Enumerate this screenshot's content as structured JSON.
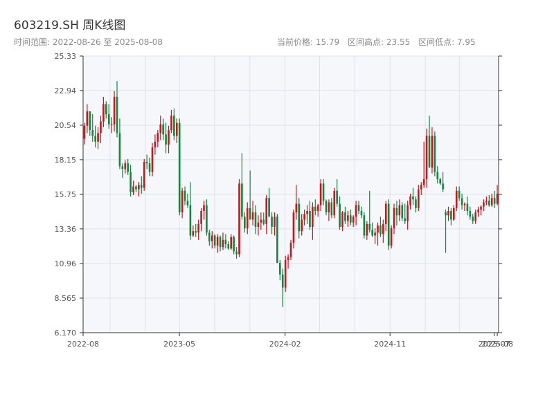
{
  "title": "603219.SH 周K线图",
  "range_text": "时间范围: 2022-08-26 至 2025-08-08",
  "stats": {
    "current": "当前价格: 15.79",
    "high": "区间高点: 23.55",
    "low": "区间低点: 7.95"
  },
  "colors": {
    "up": "#c8161d",
    "down": "#11873d",
    "plot_bg": "#f5f7fa",
    "grid": "#dde3ea",
    "axis": "#333333"
  },
  "chart_data": {
    "type": "candlestick",
    "title": "603219.SH 周K线图",
    "xlabel": "",
    "ylabel": "",
    "ylim": [
      6.17,
      25.33
    ],
    "yticks": [
      "6.170",
      "8.565",
      "10.96",
      "13.36",
      "15.75",
      "18.15",
      "20.54",
      "22.94",
      "25.33"
    ],
    "xlim": [
      "2022-08-26",
      "2025-08-08"
    ],
    "xticks": [
      {
        "date": "2022-08-01",
        "label": "2022-08"
      },
      {
        "date": "2023-05-01",
        "label": "2023-05"
      },
      {
        "date": "2024-02-01",
        "label": "2024-02"
      },
      {
        "date": "2024-11-01",
        "label": "2024-11"
      },
      {
        "date": "2025-07-31",
        "label": "2025-07"
      },
      {
        "date": "2025-08-08",
        "label": "2025-08"
      }
    ],
    "grid": true,
    "series": [
      {
        "columns": [
          "open",
          "high",
          "low",
          "close"
        ],
        "points": [
          [
            19.6,
            20.7,
            19.2,
            20.5
          ],
          [
            20.5,
            22.0,
            20.0,
            21.5
          ],
          [
            21.5,
            21.5,
            19.8,
            20.2
          ],
          [
            20.2,
            21.3,
            19.4,
            19.8
          ],
          [
            19.8,
            20.5,
            19.0,
            19.4
          ],
          [
            19.4,
            20.4,
            18.9,
            20.0
          ],
          [
            20.0,
            21.2,
            19.3,
            20.8
          ],
          [
            20.8,
            22.5,
            20.4,
            22.0
          ],
          [
            22.0,
            22.2,
            21.0,
            21.3
          ],
          [
            21.3,
            22.0,
            20.3,
            20.6
          ],
          [
            20.6,
            21.1,
            20.0,
            20.6
          ],
          [
            20.6,
            22.9,
            20.1,
            22.5
          ],
          [
            22.5,
            23.6,
            19.7,
            20.0
          ],
          [
            20.0,
            21.0,
            17.5,
            17.7
          ],
          [
            17.7,
            17.9,
            16.9,
            17.5
          ],
          [
            17.5,
            18.1,
            17.2,
            17.9
          ],
          [
            17.9,
            18.2,
            17.1,
            17.3
          ],
          [
            17.3,
            17.8,
            15.6,
            15.9
          ],
          [
            15.9,
            16.7,
            15.7,
            16.3
          ],
          [
            16.3,
            16.4,
            15.9,
            16.1
          ],
          [
            16.1,
            16.6,
            15.6,
            16.4
          ],
          [
            16.4,
            17.0,
            15.8,
            16.2
          ],
          [
            16.2,
            18.2,
            16.0,
            18.0
          ],
          [
            18.0,
            18.5,
            17.5,
            17.9
          ],
          [
            17.9,
            18.3,
            17.0,
            17.3
          ],
          [
            17.3,
            19.3,
            17.0,
            19.0
          ],
          [
            19.0,
            19.9,
            18.5,
            19.4
          ],
          [
            19.4,
            20.2,
            19.0,
            20.0
          ],
          [
            20.0,
            21.2,
            19.5,
            20.6
          ],
          [
            20.6,
            21.0,
            19.5,
            19.9
          ],
          [
            19.9,
            20.7,
            18.6,
            19.2
          ],
          [
            19.2,
            20.5,
            18.6,
            20.2
          ],
          [
            20.2,
            21.6,
            20.0,
            21.2
          ],
          [
            21.2,
            21.7,
            19.5,
            19.8
          ],
          [
            19.8,
            21.0,
            19.3,
            20.7
          ],
          [
            20.7,
            21.0,
            14.3,
            14.5
          ],
          [
            14.5,
            16.2,
            14.1,
            16.0
          ],
          [
            16.0,
            16.3,
            15.0,
            15.3
          ],
          [
            15.3,
            15.8,
            14.8,
            15.0
          ],
          [
            15.0,
            16.6,
            12.6,
            12.9
          ],
          [
            12.9,
            13.6,
            12.8,
            13.2
          ],
          [
            13.2,
            13.7,
            12.8,
            13.1
          ],
          [
            13.1,
            14.0,
            12.6,
            13.7
          ],
          [
            13.7,
            14.8,
            13.2,
            14.6
          ],
          [
            14.6,
            15.3,
            14.0,
            15.0
          ],
          [
            15.0,
            15.4,
            12.9,
            13.1
          ],
          [
            13.1,
            13.3,
            12.2,
            12.5
          ],
          [
            12.5,
            13.2,
            12.0,
            12.9
          ],
          [
            12.9,
            13.0,
            12.0,
            12.2
          ],
          [
            12.2,
            13.0,
            11.7,
            12.8
          ],
          [
            12.8,
            12.9,
            11.8,
            12.1
          ],
          [
            12.1,
            13.1,
            11.9,
            12.6
          ],
          [
            12.6,
            13.0,
            12.0,
            12.3
          ],
          [
            12.3,
            12.5,
            11.9,
            12.0
          ],
          [
            12.0,
            13.0,
            11.9,
            12.8
          ],
          [
            12.8,
            12.9,
            11.6,
            11.8
          ],
          [
            11.8,
            12.1,
            11.3,
            11.6
          ],
          [
            11.6,
            16.8,
            11.4,
            16.5
          ],
          [
            16.5,
            18.6,
            14.0,
            14.2
          ],
          [
            14.2,
            14.5,
            13.1,
            13.4
          ],
          [
            13.4,
            15.2,
            13.0,
            14.8
          ],
          [
            14.8,
            17.4,
            14.6,
            14.0
          ],
          [
            14.0,
            15.3,
            13.6,
            14.5
          ],
          [
            14.5,
            15.0,
            13.0,
            13.5
          ],
          [
            13.5,
            14.3,
            12.9,
            13.8
          ],
          [
            13.8,
            14.5,
            13.3,
            14.0
          ],
          [
            14.0,
            14.5,
            13.6,
            13.7
          ],
          [
            13.7,
            15.7,
            13.0,
            15.5
          ],
          [
            15.5,
            16.2,
            14.6,
            14.2
          ],
          [
            14.2,
            14.5,
            13.0,
            13.5
          ],
          [
            13.5,
            14.5,
            12.9,
            14.2
          ],
          [
            14.2,
            14.4,
            11.8,
            11.0
          ],
          [
            11.0,
            11.2,
            9.8,
            10.2
          ],
          [
            10.2,
            10.6,
            7.95,
            9.3
          ],
          [
            9.3,
            11.5,
            9.0,
            11.2
          ],
          [
            11.2,
            11.6,
            10.6,
            11.4
          ],
          [
            11.4,
            12.6,
            11.2,
            12.4
          ],
          [
            12.4,
            14.7,
            12.0,
            14.5
          ],
          [
            14.5,
            16.4,
            14.0,
            15.1
          ],
          [
            15.1,
            15.5,
            12.7,
            13.2
          ],
          [
            13.2,
            14.4,
            12.9,
            14.0
          ],
          [
            14.0,
            14.7,
            13.6,
            14.4
          ],
          [
            14.4,
            15.0,
            13.7,
            14.6
          ],
          [
            14.6,
            15.3,
            13.3,
            13.5
          ],
          [
            13.5,
            15.2,
            12.6,
            14.9
          ],
          [
            14.9,
            15.4,
            14.3,
            14.6
          ],
          [
            14.6,
            15.1,
            14.2,
            15.0
          ],
          [
            15.0,
            16.8,
            14.6,
            16.5
          ],
          [
            16.5,
            16.8,
            15.0,
            15.3
          ],
          [
            15.3,
            15.4,
            14.3,
            14.5
          ],
          [
            14.5,
            15.4,
            13.9,
            15.2
          ],
          [
            15.2,
            15.5,
            14.1,
            14.3
          ],
          [
            14.3,
            16.2,
            14.1,
            16.0
          ],
          [
            16.0,
            16.8,
            14.9,
            15.1
          ],
          [
            15.1,
            15.6,
            13.3,
            13.5
          ],
          [
            13.5,
            14.6,
            13.2,
            14.5
          ],
          [
            14.5,
            14.9,
            13.7,
            13.9
          ],
          [
            13.9,
            14.6,
            13.5,
            14.3
          ],
          [
            14.3,
            14.7,
            13.6,
            13.8
          ],
          [
            13.8,
            14.3,
            13.5,
            14.2
          ],
          [
            14.2,
            15.3,
            13.6,
            15.0
          ],
          [
            15.0,
            15.3,
            14.4,
            14.6
          ],
          [
            14.6,
            14.9,
            14.1,
            14.3
          ],
          [
            14.3,
            14.5,
            12.7,
            12.9
          ],
          [
            12.9,
            13.9,
            12.6,
            13.7
          ],
          [
            13.7,
            16.0,
            13.1,
            13.3
          ],
          [
            13.3,
            13.8,
            12.8,
            12.9
          ],
          [
            12.9,
            13.4,
            12.3,
            13.1
          ],
          [
            13.1,
            13.8,
            12.2,
            13.6
          ],
          [
            13.6,
            14.2,
            12.8,
            13.0
          ],
          [
            13.0,
            14.0,
            12.4,
            13.7
          ],
          [
            13.7,
            15.3,
            13.2,
            15.1
          ],
          [
            15.1,
            15.4,
            11.9,
            12.2
          ],
          [
            12.2,
            13.6,
            12.0,
            13.4
          ],
          [
            13.4,
            15.1,
            13.0,
            14.8
          ],
          [
            14.8,
            15.3,
            13.6,
            14.3
          ],
          [
            14.3,
            15.4,
            13.9,
            15.0
          ],
          [
            15.0,
            15.2,
            13.9,
            14.1
          ],
          [
            14.1,
            15.1,
            13.7,
            13.9
          ],
          [
            13.9,
            15.3,
            13.3,
            15.0
          ],
          [
            15.0,
            15.8,
            14.7,
            15.6
          ],
          [
            15.6,
            16.2,
            15.0,
            15.4
          ],
          [
            15.4,
            15.6,
            14.5,
            14.8
          ],
          [
            14.8,
            16.4,
            14.6,
            16.1
          ],
          [
            16.1,
            16.6,
            15.7,
            16.4
          ],
          [
            16.4,
            19.4,
            16.2,
            16.8
          ],
          [
            16.8,
            20.3,
            16.2,
            19.8
          ],
          [
            19.8,
            21.2,
            19.2,
            17.6
          ],
          [
            17.6,
            20.4,
            17.2,
            19.8
          ],
          [
            19.8,
            20.1,
            17.0,
            17.3
          ],
          [
            17.3,
            17.7,
            16.5,
            16.8
          ],
          [
            16.8,
            16.9,
            16.4,
            16.5
          ],
          [
            16.5,
            17.3,
            15.9,
            16.1
          ],
          [
            14.5,
            14.7,
            11.7,
            14.3
          ],
          [
            14.3,
            14.9,
            13.9,
            14.6
          ],
          [
            14.6,
            14.8,
            13.6,
            14.0
          ],
          [
            14.0,
            15.0,
            13.9,
            14.8
          ],
          [
            14.8,
            16.3,
            14.6,
            16.0
          ],
          [
            16.0,
            16.3,
            15.3,
            15.5
          ],
          [
            15.5,
            15.8,
            14.7,
            15.0
          ],
          [
            15.0,
            15.2,
            14.6,
            15.1
          ],
          [
            15.1,
            15.6,
            14.3,
            14.6
          ],
          [
            14.6,
            14.9,
            14.0,
            14.2
          ],
          [
            14.2,
            14.4,
            13.7,
            13.9
          ],
          [
            13.9,
            14.7,
            13.7,
            14.5
          ],
          [
            14.5,
            14.9,
            14.2,
            14.7
          ],
          [
            14.7,
            15.0,
            14.3,
            14.9
          ],
          [
            14.9,
            15.4,
            14.6,
            15.2
          ],
          [
            15.2,
            15.6,
            15.0,
            15.3
          ],
          [
            15.3,
            15.7,
            14.9,
            15.0
          ],
          [
            15.0,
            15.8,
            14.9,
            15.5
          ],
          [
            15.5,
            16.0,
            14.8,
            15.1
          ],
          [
            15.1,
            16.4,
            15.0,
            15.79
          ]
        ]
      }
    ]
  }
}
